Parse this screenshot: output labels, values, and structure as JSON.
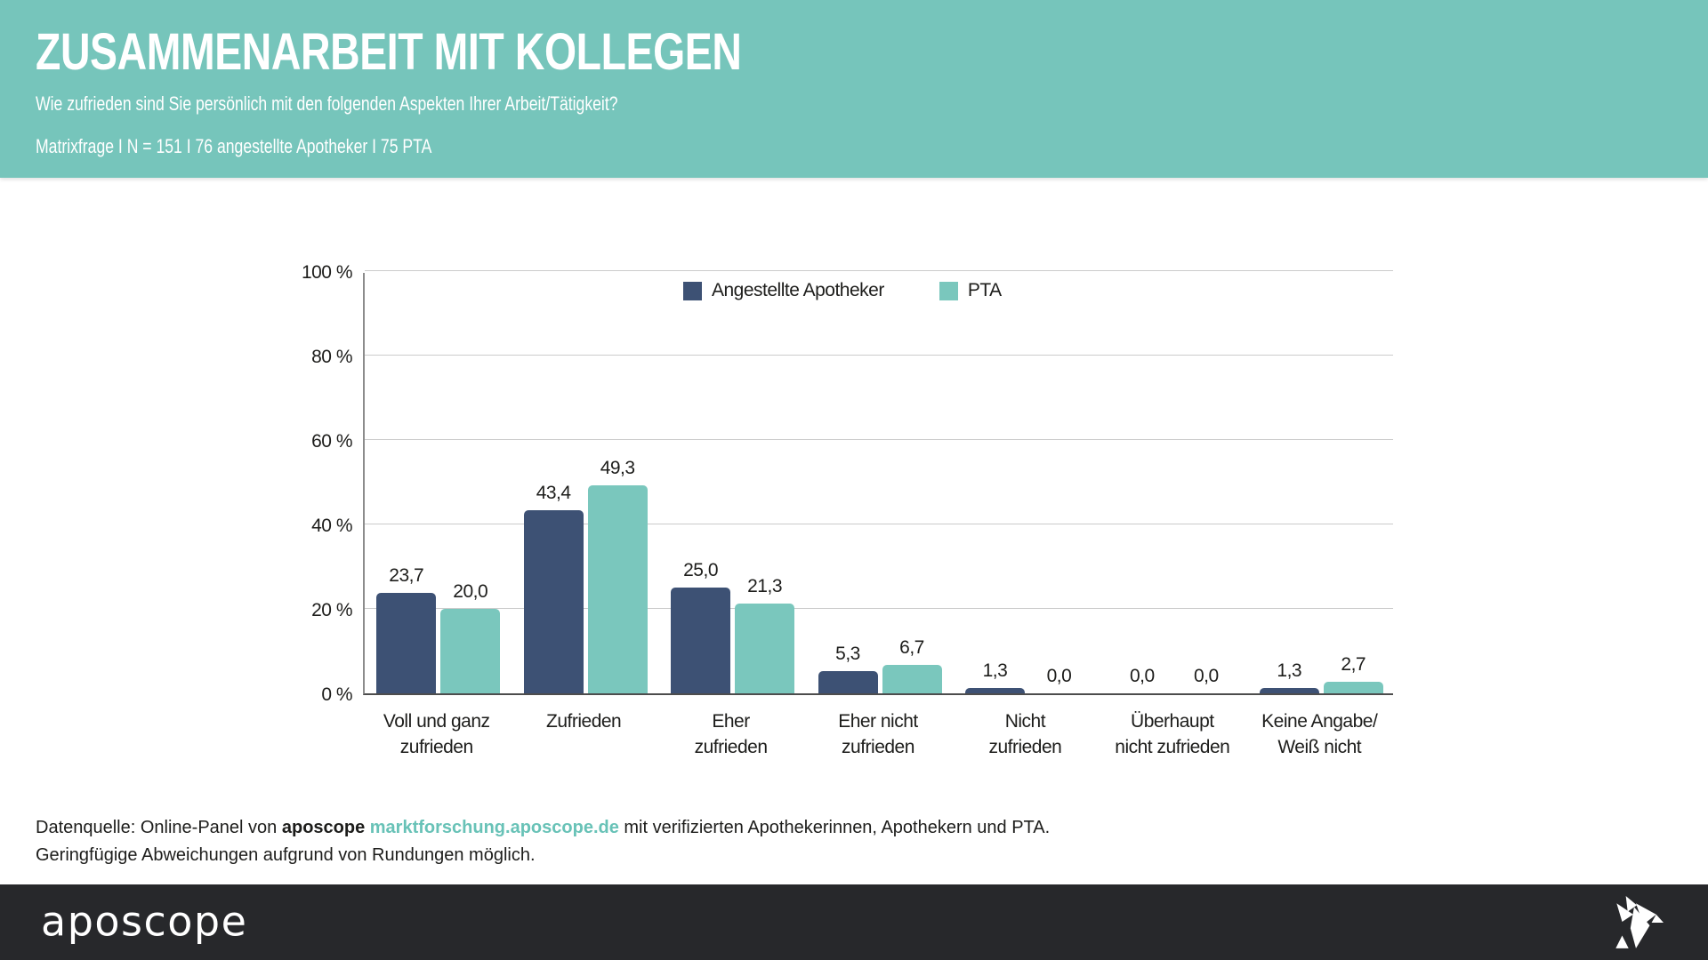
{
  "header": {
    "title": "ZUSAMMENARBEIT MIT KOLLEGEN",
    "subtitle": "Wie zufrieden sind Sie persönlich mit den folgenden Aspekten Ihrer Arbeit/Tätigkeit?",
    "meta": "Matrixfrage I N = 151 I 76 angestellte Apotheker I 75 PTA"
  },
  "chart_data": {
    "type": "bar",
    "title": "",
    "xlabel": "",
    "ylabel": "",
    "ylim": [
      0,
      100
    ],
    "grid": true,
    "legend_position": "top-center",
    "categories": [
      "Voll und ganz zufrieden",
      "Zufrieden",
      "Eher zufrieden",
      "Eher nicht zufrieden",
      "Nicht zufrieden",
      "Überhaupt nicht zufrieden",
      "Keine Angabe/Weiß nicht"
    ],
    "categories_lines": [
      [
        "Voll und ganz",
        "zufrieden"
      ],
      [
        "Zufrieden"
      ],
      [
        "Eher",
        "zufrieden"
      ],
      [
        "Eher nicht",
        "zufrieden"
      ],
      [
        "Nicht",
        "zufrieden"
      ],
      [
        "Überhaupt",
        "nicht zufrieden"
      ],
      [
        "Keine Angabe/",
        "Weiß nicht"
      ]
    ],
    "series": [
      {
        "name": "Angestellte Apotheker",
        "color": "#3d5174",
        "values": [
          23.7,
          43.4,
          25.0,
          5.3,
          1.3,
          0.0,
          1.3
        ],
        "value_labels": [
          "23,7",
          "43,4",
          "25,0",
          "5,3",
          "1,3",
          "0,0",
          "1,3"
        ]
      },
      {
        "name": "PTA",
        "color": "#7ac7bd",
        "values": [
          20.0,
          49.3,
          21.3,
          6.7,
          0.0,
          0.0,
          2.7
        ],
        "value_labels": [
          "20,0",
          "49,3",
          "21,3",
          "6,7",
          "0,0",
          "0,0",
          "2,7"
        ]
      }
    ],
    "yticks": [
      {
        "label": "100 %",
        "value": 100
      },
      {
        "label": "80 %",
        "value": 80
      },
      {
        "label": "60 %",
        "value": 60
      },
      {
        "label": "40 %",
        "value": 40
      },
      {
        "label": "20 %",
        "value": 20
      },
      {
        "label": "0 %",
        "value": 0
      }
    ]
  },
  "footer": {
    "source_prefix": "Datenquelle: Online-Panel von ",
    "source_brand": "aposcope",
    "source_link": " marktforschung.aposcope.de",
    "source_suffix": " mit verifizierten Apothekerinnen, Apothekern und PTA.",
    "note": "Geringfügige Abweichungen aufgrund von Rundungen möglich.",
    "logo_text": "aposcope"
  },
  "colors": {
    "header_background": "#76c5bb",
    "series_apotheker": "#3d5174",
    "series_pta": "#7ac7bd",
    "link": "#68c2b7",
    "brandbar_background": "#27282b",
    "text": "#1d1d1b",
    "gridline": "#cbcbcb"
  }
}
